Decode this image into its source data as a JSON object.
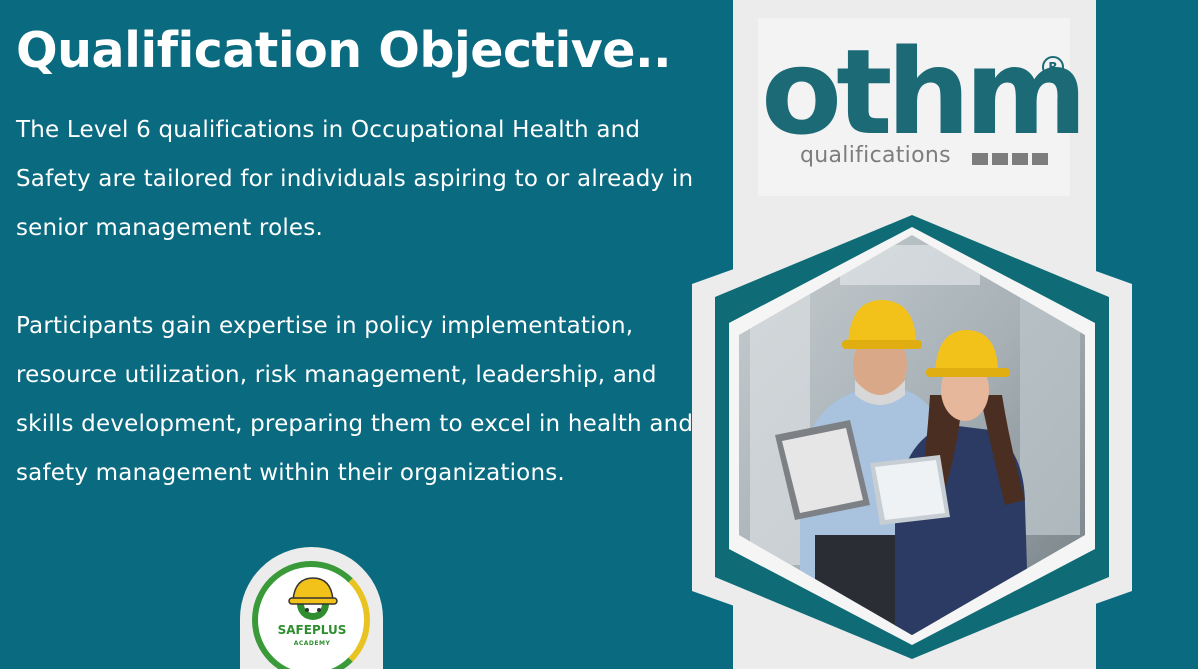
{
  "heading": "Qualification Objective..",
  "paragraphs": [
    "The Level 6 qualifications in Occupational Health and Safety are tailored for individuals aspiring to or already in senior management roles.",
    "Participants gain expertise in policy implementation, resource utilization, risk management, leadership, and skills development, preparing them to excel in health and safety management within their organizations."
  ],
  "logo": {
    "name": "othm",
    "registered": "R",
    "tagline": "qualifications",
    "icon": "othm-logo"
  },
  "badge": {
    "name": "SAFEPLUS",
    "sub": "ACADEMY",
    "icon": "safeplus-helmet-gear-logo"
  },
  "photo": {
    "icon": "workers-hardhat-photo"
  },
  "colors": {
    "background": "#0a6b80",
    "panel": "#ececec",
    "brand_teal": "#1d6a77",
    "helmet": "#f2c21a",
    "badge_green": "#3a9a3a"
  }
}
